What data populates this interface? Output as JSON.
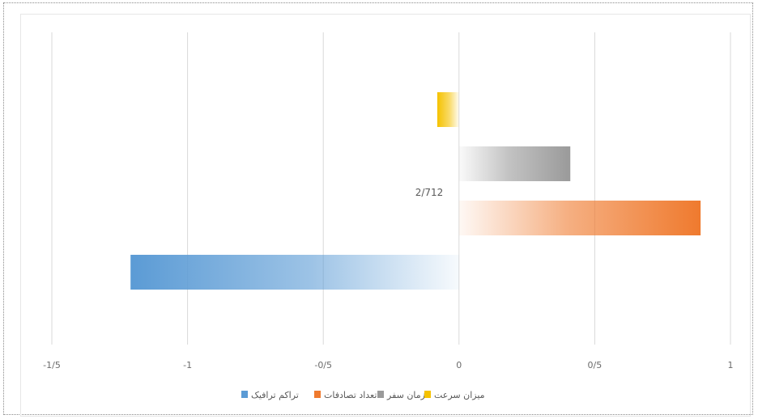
{
  "chart_data": {
    "type": "bar",
    "orientation": "horizontal",
    "categories": [
      "میزان سرعت",
      "زمان سفر",
      "تعداد تصادفات",
      "تراکم ترافیک"
    ],
    "series": [
      {
        "name": "میزان سرعت",
        "value": -0.08,
        "color": "#f5c200"
      },
      {
        "name": "زمان سفر",
        "value": 0.41,
        "color": "#9a9a9a"
      },
      {
        "name": "تعداد تصادفات",
        "value": 0.89,
        "color": "#ef7a2e"
      },
      {
        "name": "تراکم ترافیک",
        "value": -1.21,
        "color": "#5b9bd5"
      }
    ],
    "xlim": [
      -1.5,
      1
    ],
    "xticks": [
      -1.5,
      -1,
      -0.5,
      0,
      0.5,
      1
    ],
    "xtick_labels": [
      "-1/5",
      "-1",
      "-0/5",
      "0",
      "0/5",
      "1"
    ],
    "annotation": "2/712",
    "grid": true,
    "legend": "bottom"
  }
}
